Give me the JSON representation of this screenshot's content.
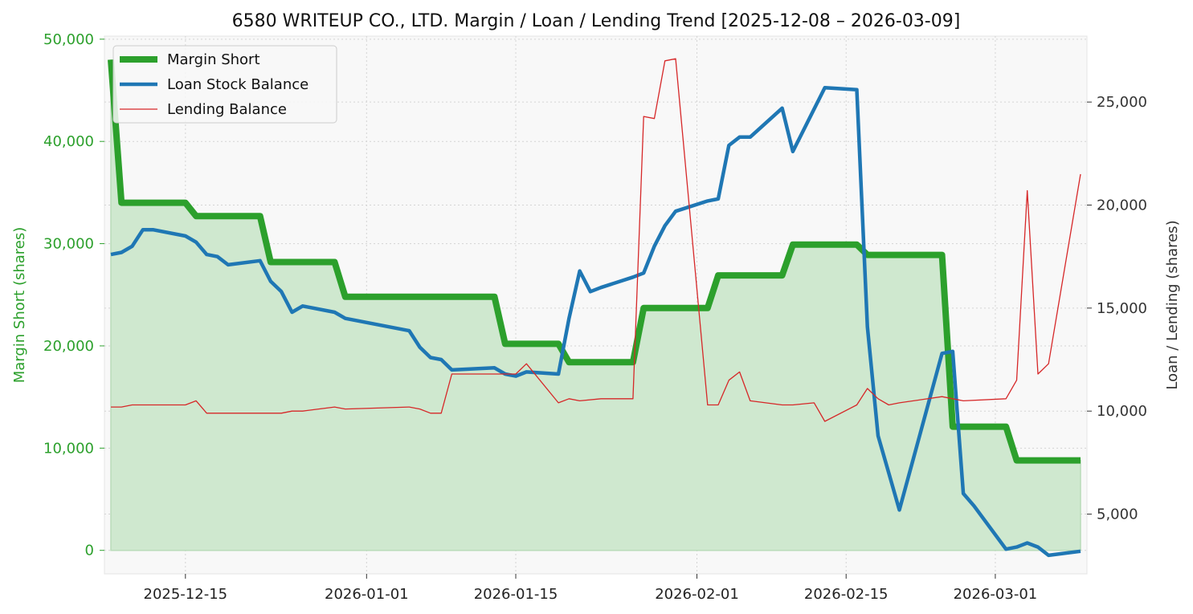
{
  "chart_data": {
    "type": "line",
    "title": "6580 WRITEUP CO., LTD. Margin / Loan / Lending Trend [2025-12-08 – 2026-03-09]",
    "xlabel": "",
    "ylabel_left": "Margin Short (shares)",
    "ylabel_right": "Loan / Lending (shares)",
    "x_ticks": [
      "2025-12-15",
      "2026-01-01",
      "2026-01-15",
      "2026-02-01",
      "2026-02-15",
      "2026-03-01"
    ],
    "y_left_ticks": [
      "0",
      "10,000",
      "20,000",
      "30,000",
      "40,000",
      "50,000"
    ],
    "y_right_ticks": [
      "5,000",
      "10,000",
      "15,000",
      "20,000",
      "25,000"
    ],
    "y_left_lim": [
      -2300,
      50300
    ],
    "y_right_lim": [
      2100,
      28200
    ],
    "x_start": "2025-12-08",
    "x_end": "2026-03-09",
    "grid": true,
    "legend": "top-left",
    "colors": {
      "margin": "#2ca02c",
      "margin_fill": "#cfe8cf",
      "loan": "#1f77b4",
      "lending": "#d62728",
      "left_axis": "#2ca02c",
      "right_axis": "#333333",
      "plot_bg": "#f8f8f8"
    },
    "series": [
      {
        "name": "Margin Short",
        "axis": "left",
        "points": [
          [
            "2025-12-08",
            48000
          ],
          [
            "2025-12-09",
            34000
          ],
          [
            "2025-12-15",
            34000
          ],
          [
            "2025-12-16",
            32700
          ],
          [
            "2025-12-22",
            32700
          ],
          [
            "2025-12-23",
            28200
          ],
          [
            "2025-12-29",
            28200
          ],
          [
            "2025-12-30",
            24800
          ],
          [
            "2026-01-13",
            24800
          ],
          [
            "2026-01-14",
            20200
          ],
          [
            "2026-01-19",
            20200
          ],
          [
            "2026-01-20",
            18400
          ],
          [
            "2026-01-26",
            18400
          ],
          [
            "2026-01-27",
            23700
          ],
          [
            "2026-02-02",
            23700
          ],
          [
            "2026-02-03",
            26900
          ],
          [
            "2026-02-09",
            26900
          ],
          [
            "2026-02-10",
            29900
          ],
          [
            "2026-02-16",
            29900
          ],
          [
            "2026-02-17",
            28900
          ],
          [
            "2026-02-24",
            28900
          ],
          [
            "2026-02-25",
            12100
          ],
          [
            "2026-03-02",
            12100
          ],
          [
            "2026-03-03",
            8800
          ],
          [
            "2026-03-09",
            8800
          ]
        ]
      },
      {
        "name": "Loan Stock Balance",
        "axis": "right",
        "points": [
          [
            "2025-12-08",
            17600
          ],
          [
            "2025-12-09",
            17700
          ],
          [
            "2025-12-10",
            18000
          ],
          [
            "2025-12-11",
            18800
          ],
          [
            "2025-12-12",
            18800
          ],
          [
            "2025-12-15",
            18500
          ],
          [
            "2025-12-16",
            18200
          ],
          [
            "2025-12-17",
            17600
          ],
          [
            "2025-12-18",
            17500
          ],
          [
            "2025-12-19",
            17100
          ],
          [
            "2025-12-22",
            17300
          ],
          [
            "2025-12-23",
            16300
          ],
          [
            "2025-12-24",
            15800
          ],
          [
            "2025-12-25",
            14800
          ],
          [
            "2025-12-26",
            15100
          ],
          [
            "2025-12-29",
            14800
          ],
          [
            "2025-12-30",
            14500
          ],
          [
            "2026-01-05",
            13900
          ],
          [
            "2026-01-06",
            13100
          ],
          [
            "2026-01-07",
            12600
          ],
          [
            "2026-01-08",
            12500
          ],
          [
            "2026-01-09",
            12000
          ],
          [
            "2026-01-13",
            12100
          ],
          [
            "2026-01-14",
            11800
          ],
          [
            "2026-01-15",
            11700
          ],
          [
            "2026-01-16",
            11900
          ],
          [
            "2026-01-19",
            11800
          ],
          [
            "2026-01-20",
            14500
          ],
          [
            "2026-01-21",
            16800
          ],
          [
            "2026-01-22",
            15800
          ],
          [
            "2026-01-23",
            16000
          ],
          [
            "2026-01-26",
            16500
          ],
          [
            "2026-01-27",
            16700
          ],
          [
            "2026-01-28",
            18000
          ],
          [
            "2026-01-29",
            19000
          ],
          [
            "2026-01-30",
            19700
          ],
          [
            "2026-02-02",
            20200
          ],
          [
            "2026-02-03",
            20300
          ],
          [
            "2026-02-04",
            22900
          ],
          [
            "2026-02-05",
            23300
          ],
          [
            "2026-02-06",
            23300
          ],
          [
            "2026-02-09",
            24700
          ],
          [
            "2026-02-10",
            22600
          ],
          [
            "2026-02-13",
            25700
          ],
          [
            "2026-02-16",
            25600
          ],
          [
            "2026-02-17",
            14100
          ],
          [
            "2026-02-18",
            8800
          ],
          [
            "2026-02-19",
            7000
          ],
          [
            "2026-02-20",
            5200
          ],
          [
            "2026-02-24",
            12800
          ],
          [
            "2026-02-25",
            12900
          ],
          [
            "2026-02-26",
            6000
          ],
          [
            "2026-02-27",
            5400
          ],
          [
            "2026-03-02",
            3300
          ],
          [
            "2026-03-03",
            3400
          ],
          [
            "2026-03-04",
            3600
          ],
          [
            "2026-03-05",
            3400
          ],
          [
            "2026-03-06",
            3000
          ],
          [
            "2026-03-09",
            3200
          ]
        ]
      },
      {
        "name": "Lending Balance",
        "axis": "right",
        "points": [
          [
            "2025-12-08",
            10200
          ],
          [
            "2025-12-09",
            10200
          ],
          [
            "2025-12-10",
            10300
          ],
          [
            "2025-12-15",
            10300
          ],
          [
            "2025-12-16",
            10500
          ],
          [
            "2025-12-17",
            9900
          ],
          [
            "2025-12-23",
            9900
          ],
          [
            "2025-12-24",
            9900
          ],
          [
            "2025-12-25",
            10000
          ],
          [
            "2025-12-26",
            10000
          ],
          [
            "2025-12-29",
            10200
          ],
          [
            "2025-12-30",
            10100
          ],
          [
            "2026-01-05",
            10200
          ],
          [
            "2026-01-06",
            10100
          ],
          [
            "2026-01-07",
            9900
          ],
          [
            "2026-01-08",
            9900
          ],
          [
            "2026-01-09",
            11800
          ],
          [
            "2026-01-15",
            11800
          ],
          [
            "2026-01-16",
            12300
          ],
          [
            "2026-01-19",
            10400
          ],
          [
            "2026-01-20",
            10600
          ],
          [
            "2026-01-21",
            10500
          ],
          [
            "2026-01-23",
            10600
          ],
          [
            "2026-01-26",
            10600
          ],
          [
            "2026-01-27",
            24300
          ],
          [
            "2026-01-28",
            24200
          ],
          [
            "2026-01-29",
            27000
          ],
          [
            "2026-01-30",
            27100
          ],
          [
            "2026-02-02",
            10300
          ],
          [
            "2026-02-03",
            10300
          ],
          [
            "2026-02-04",
            11500
          ],
          [
            "2026-02-05",
            11900
          ],
          [
            "2026-02-06",
            10500
          ],
          [
            "2026-02-09",
            10300
          ],
          [
            "2026-02-10",
            10300
          ],
          [
            "2026-02-12",
            10400
          ],
          [
            "2026-02-13",
            9500
          ],
          [
            "2026-02-16",
            10300
          ],
          [
            "2026-02-17",
            11100
          ],
          [
            "2026-02-18",
            10600
          ],
          [
            "2026-02-19",
            10300
          ],
          [
            "2026-02-20",
            10400
          ],
          [
            "2026-02-24",
            10700
          ],
          [
            "2026-02-25",
            10600
          ],
          [
            "2026-02-26",
            10500
          ],
          [
            "2026-03-02",
            10600
          ],
          [
            "2026-03-03",
            11500
          ],
          [
            "2026-03-04",
            20700
          ],
          [
            "2026-03-05",
            11800
          ],
          [
            "2026-03-06",
            12300
          ],
          [
            "2026-03-09",
            21500
          ]
        ]
      }
    ]
  }
}
